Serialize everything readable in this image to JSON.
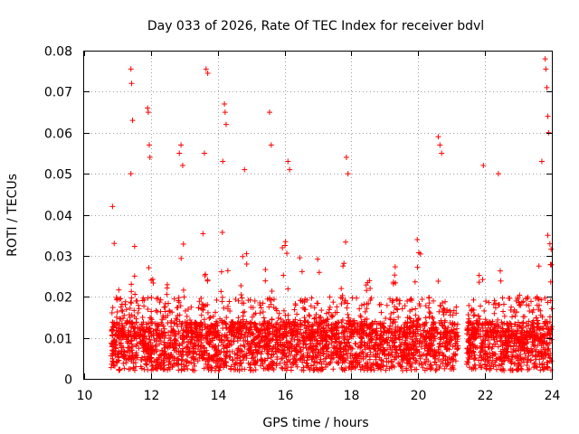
{
  "chart_data": {
    "type": "scatter",
    "title": "Day 033 of 2026, Rate Of TEC Index for receiver bdvl",
    "xlabel": "GPS time / hours",
    "ylabel": "ROTI / TECUs",
    "xlim": [
      10,
      24
    ],
    "ylim": [
      0,
      0.08
    ],
    "x_ticks": [
      "10",
      "12",
      "14",
      "16",
      "18",
      "20",
      "22",
      "24"
    ],
    "y_ticks": [
      "0",
      "0.01",
      "0.02",
      "0.03",
      "0.04",
      "0.05",
      "0.06",
      "0.07",
      "0.08"
    ],
    "grid": true,
    "marker": "+",
    "marker_color": "#ff0000",
    "series": [
      {
        "name": "ROTI",
        "coverage_hours": [
          10.8,
          24.0
        ],
        "data_gap_hours": [
          21.2,
          21.45
        ],
        "note": "Dense cloud of points; values mostly 0.002-0.02, peaks shown below",
        "peaks": [
          {
            "x": 10.85,
            "y": 0.042
          },
          {
            "x": 10.9,
            "y": 0.033
          },
          {
            "x": 11.4,
            "y": 0.0755
          },
          {
            "x": 11.42,
            "y": 0.072
          },
          {
            "x": 11.45,
            "y": 0.063
          },
          {
            "x": 11.4,
            "y": 0.05
          },
          {
            "x": 11.9,
            "y": 0.066
          },
          {
            "x": 11.92,
            "y": 0.065
          },
          {
            "x": 11.95,
            "y": 0.057
          },
          {
            "x": 11.97,
            "y": 0.054
          },
          {
            "x": 12.9,
            "y": 0.057
          },
          {
            "x": 12.85,
            "y": 0.055
          },
          {
            "x": 12.95,
            "y": 0.052
          },
          {
            "x": 13.65,
            "y": 0.0755
          },
          {
            "x": 13.7,
            "y": 0.0745
          },
          {
            "x": 13.6,
            "y": 0.055
          },
          {
            "x": 14.2,
            "y": 0.067
          },
          {
            "x": 14.22,
            "y": 0.065
          },
          {
            "x": 14.25,
            "y": 0.062
          },
          {
            "x": 14.15,
            "y": 0.053
          },
          {
            "x": 14.8,
            "y": 0.051
          },
          {
            "x": 15.55,
            "y": 0.065
          },
          {
            "x": 15.6,
            "y": 0.057
          },
          {
            "x": 16.1,
            "y": 0.053
          },
          {
            "x": 16.15,
            "y": 0.051
          },
          {
            "x": 17.85,
            "y": 0.054
          },
          {
            "x": 17.9,
            "y": 0.05
          },
          {
            "x": 20.6,
            "y": 0.059
          },
          {
            "x": 20.65,
            "y": 0.057
          },
          {
            "x": 20.7,
            "y": 0.055
          },
          {
            "x": 21.95,
            "y": 0.052
          },
          {
            "x": 22.4,
            "y": 0.05
          },
          {
            "x": 23.8,
            "y": 0.078
          },
          {
            "x": 23.82,
            "y": 0.0755
          },
          {
            "x": 23.85,
            "y": 0.071
          },
          {
            "x": 23.88,
            "y": 0.064
          },
          {
            "x": 23.9,
            "y": 0.06
          },
          {
            "x": 23.7,
            "y": 0.053
          }
        ]
      }
    ]
  }
}
